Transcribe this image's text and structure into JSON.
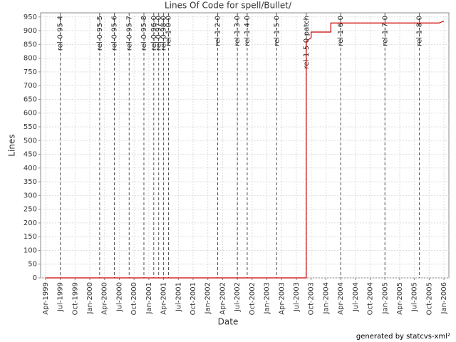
{
  "chart_data": {
    "type": "line",
    "title": "Lines Of Code for spell/Bullet/",
    "x_label": "Date",
    "y_label": "Lines",
    "footer": "generated by statcvs-xml²",
    "x": [
      "1999-04",
      "2003-09",
      "2003-09",
      "2003-10",
      "2003-10",
      "2004-02",
      "2004-02",
      "2005-12",
      "2006-01"
    ],
    "series": [
      {
        "name": "Lines",
        "color": "#cc0000",
        "values": [
          0,
          0,
          860,
          875,
          895,
          895,
          928,
          928,
          935
        ]
      }
    ],
    "xlim": [
      "1999-03",
      "2006-02"
    ],
    "xticks": [
      {
        "value": "1999-04",
        "label": "Apr-1999"
      },
      {
        "value": "1999-07",
        "label": "Jul-1999"
      },
      {
        "value": "1999-10",
        "label": "Oct-1999"
      },
      {
        "value": "2000-01",
        "label": "Jan-2000"
      },
      {
        "value": "2000-04",
        "label": "Apr-2000"
      },
      {
        "value": "2000-07",
        "label": "Jul-2000"
      },
      {
        "value": "2000-10",
        "label": "Oct-2000"
      },
      {
        "value": "2001-01",
        "label": "Jan-2001"
      },
      {
        "value": "2001-04",
        "label": "Apr-2001"
      },
      {
        "value": "2001-07",
        "label": "Jul-2001"
      },
      {
        "value": "2001-10",
        "label": "Oct-2001"
      },
      {
        "value": "2002-01",
        "label": "Jan-2002"
      },
      {
        "value": "2002-04",
        "label": "Apr-2002"
      },
      {
        "value": "2002-07",
        "label": "Jul-2002"
      },
      {
        "value": "2002-10",
        "label": "Oct-2002"
      },
      {
        "value": "2003-01",
        "label": "Jan-2003"
      },
      {
        "value": "2003-04",
        "label": "Apr-2003"
      },
      {
        "value": "2003-07",
        "label": "Jul-2003"
      },
      {
        "value": "2003-10",
        "label": "Oct-2003"
      },
      {
        "value": "2004-01",
        "label": "Jan-2004"
      },
      {
        "value": "2004-04",
        "label": "Apr-2004"
      },
      {
        "value": "2004-07",
        "label": "Jul-2004"
      },
      {
        "value": "2004-10",
        "label": "Oct-2004"
      },
      {
        "value": "2005-01",
        "label": "Jan-2005"
      },
      {
        "value": "2005-04",
        "label": "Apr-2005"
      },
      {
        "value": "2005-07",
        "label": "Jul-2005"
      },
      {
        "value": "2005-10",
        "label": "Oct-2005"
      },
      {
        "value": "2006-01",
        "label": "Jan-2006"
      }
    ],
    "ylim": [
      0,
      965
    ],
    "yticks": [
      0,
      50,
      100,
      150,
      200,
      250,
      300,
      350,
      400,
      450,
      500,
      550,
      600,
      650,
      700,
      750,
      800,
      850,
      900,
      950
    ],
    "grid": true,
    "markers": [
      {
        "label": "rel-0-95-4",
        "x": "1999-07"
      },
      {
        "label": "rel-0-95-5",
        "x": "2000-03"
      },
      {
        "label": "rel-0-95-6",
        "x": "2000-06"
      },
      {
        "label": "rel-0-95-7",
        "x": "2000-09"
      },
      {
        "label": "rel-0-95-8",
        "x": "2000-12"
      },
      {
        "label": "rel-0-96-0",
        "x": "2001-02"
      },
      {
        "label": "rel-0-97-0",
        "x": "2001-03"
      },
      {
        "label": "rel-0-98-0",
        "x": "2001-04"
      },
      {
        "label": "rel-1-0-0",
        "x": "2001-05"
      },
      {
        "label": "rel-1-2-0",
        "x": "2002-03"
      },
      {
        "label": "rel-1-3-0",
        "x": "2002-07"
      },
      {
        "label": "rel-1-4-0",
        "x": "2002-09"
      },
      {
        "label": "rel-1-5-0",
        "x": "2003-03"
      },
      {
        "label": "rel-1-5-0-patch",
        "x": "2003-09"
      },
      {
        "label": "rel-1-6-0",
        "x": "2004-04"
      },
      {
        "label": "rel-1-7-0",
        "x": "2005-01"
      },
      {
        "label": "rel-1-8-0",
        "x": "2005-08"
      }
    ]
  }
}
